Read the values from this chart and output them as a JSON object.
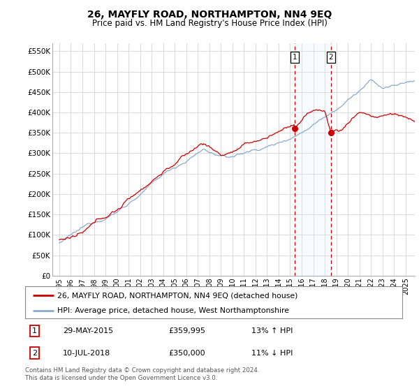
{
  "title": "26, MAYFLY ROAD, NORTHAMPTON, NN4 9EQ",
  "subtitle": "Price paid vs. HM Land Registry's House Price Index (HPI)",
  "ylim": [
    0,
    570000
  ],
  "sale1_date": 2015.38,
  "sale1_price": 359995,
  "sale1_label": "1",
  "sale1_text": "29-MAY-2015",
  "sale1_value": "£359,995",
  "sale1_hpi": "13% ↑ HPI",
  "sale2_date": 2018.52,
  "sale2_price": 350000,
  "sale2_label": "2",
  "sale2_text": "10-JUL-2018",
  "sale2_value": "£350,000",
  "sale2_hpi": "11% ↓ HPI",
  "property_color": "#cc0000",
  "hpi_color": "#88aacc",
  "hpi_fill_color": "#ddeeff",
  "dashed_color": "#cc0000",
  "legend_property": "26, MAYFLY ROAD, NORTHAMPTON, NN4 9EQ (detached house)",
  "legend_hpi": "HPI: Average price, detached house, West Northamptonshire",
  "footnote": "Contains HM Land Registry data © Crown copyright and database right 2024.\nThis data is licensed under the Open Government Licence v3.0.",
  "background_color": "#ffffff",
  "grid_color": "#cccccc"
}
